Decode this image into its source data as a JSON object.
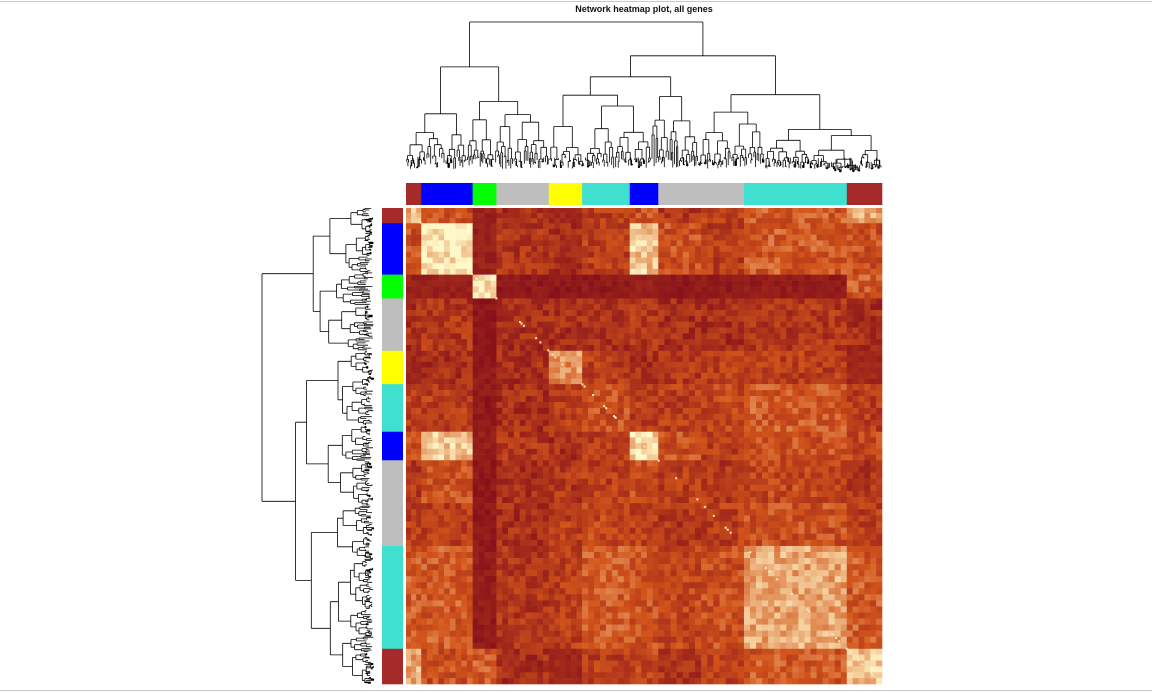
{
  "chart_data": {
    "type": "heatmap",
    "title": "Network heatmap plot, all genes",
    "xlabel": "",
    "ylabel": "",
    "gene_order_range": [
      0,
      100
    ],
    "module_segments": [
      {
        "module": "brown",
        "color": "#a52a2a",
        "start": 0,
        "end": 3.2
      },
      {
        "module": "blue",
        "color": "#0000ff",
        "start": 3.2,
        "end": 14
      },
      {
        "module": "green",
        "color": "#00ff00",
        "start": 14,
        "end": 19
      },
      {
        "module": "grey",
        "color": "#bebebe",
        "start": 19,
        "end": 30
      },
      {
        "module": "yellow",
        "color": "#ffff00",
        "start": 30,
        "end": 37
      },
      {
        "module": "turquoise",
        "color": "#40e0d0",
        "start": 37,
        "end": 47
      },
      {
        "module": "blue",
        "color": "#0000ff",
        "start": 47,
        "end": 53
      },
      {
        "module": "grey",
        "color": "#bebebe",
        "start": 53,
        "end": 62
      },
      {
        "module": "grey",
        "color": "#bebebe",
        "start": 62,
        "end": 71
      },
      {
        "module": "turquoise",
        "color": "#40e0d0",
        "start": 71,
        "end": 92.6
      },
      {
        "module": "brown",
        "color": "#a52a2a",
        "start": 92.6,
        "end": 100
      }
    ],
    "block_similarity": [
      [
        0.8,
        0.45,
        0.15,
        0.25,
        0.2,
        0.35,
        0.45,
        0.3,
        0.35,
        0.5,
        0.75
      ],
      [
        0.45,
        0.95,
        0.15,
        0.3,
        0.25,
        0.35,
        0.85,
        0.45,
        0.35,
        0.5,
        0.45
      ],
      [
        0.15,
        0.15,
        0.95,
        0.1,
        0.1,
        0.1,
        0.15,
        0.1,
        0.1,
        0.12,
        0.5
      ],
      [
        0.25,
        0.3,
        0.1,
        0.25,
        0.25,
        0.25,
        0.3,
        0.25,
        0.25,
        0.3,
        0.25
      ],
      [
        0.2,
        0.25,
        0.1,
        0.25,
        0.7,
        0.35,
        0.25,
        0.3,
        0.35,
        0.35,
        0.2
      ],
      [
        0.35,
        0.35,
        0.1,
        0.25,
        0.35,
        0.45,
        0.35,
        0.35,
        0.4,
        0.5,
        0.35
      ],
      [
        0.45,
        0.85,
        0.15,
        0.3,
        0.25,
        0.35,
        0.9,
        0.45,
        0.35,
        0.45,
        0.4
      ],
      [
        0.3,
        0.45,
        0.1,
        0.25,
        0.3,
        0.35,
        0.45,
        0.35,
        0.3,
        0.4,
        0.3
      ],
      [
        0.35,
        0.35,
        0.1,
        0.25,
        0.35,
        0.4,
        0.35,
        0.3,
        0.35,
        0.45,
        0.35
      ],
      [
        0.5,
        0.5,
        0.12,
        0.3,
        0.35,
        0.5,
        0.45,
        0.4,
        0.45,
        0.75,
        0.5
      ],
      [
        0.75,
        0.45,
        0.5,
        0.25,
        0.2,
        0.35,
        0.4,
        0.3,
        0.35,
        0.5,
        0.85
      ]
    ],
    "color_scale": {
      "low": "#7f0a1a",
      "mid": "#d2541a",
      "high": "#fff8c8"
    },
    "legend": "none"
  }
}
